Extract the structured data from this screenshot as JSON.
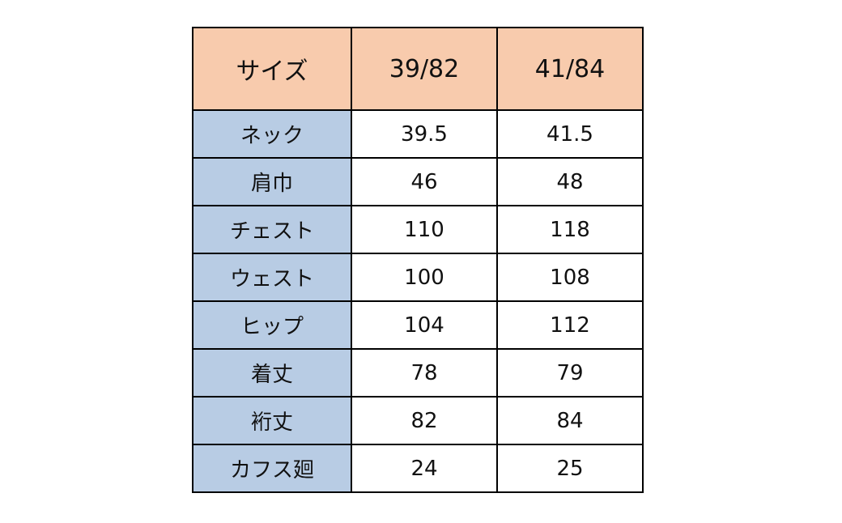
{
  "table": {
    "header": [
      "サイズ",
      "39/82",
      "41/84"
    ],
    "rows": [
      [
        "ネック",
        39.5,
        41.5
      ],
      [
        "肩巾",
        46,
        48
      ],
      [
        "チェスト",
        110,
        118
      ],
      [
        "ウェスト",
        100,
        108
      ],
      [
        "ヒップ",
        104,
        112
      ],
      [
        "着丈",
        78,
        79
      ],
      [
        "裄丈",
        82,
        84
      ],
      [
        "カフス廻",
        24,
        25
      ]
    ]
  }
}
